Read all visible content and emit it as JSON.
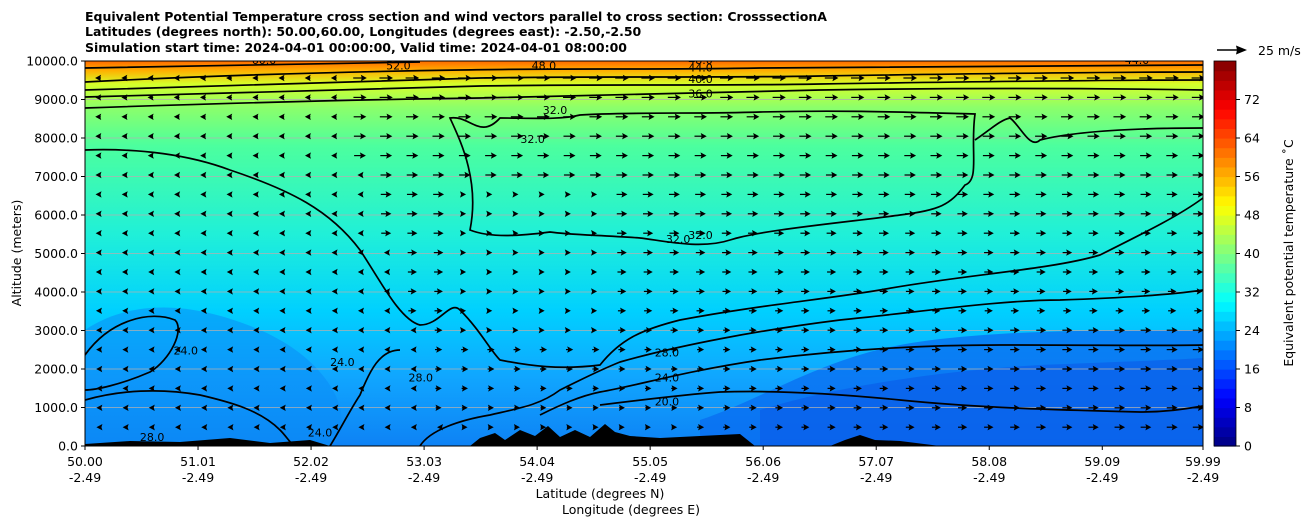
{
  "chart_data": {
    "type": "heatmap",
    "title_lines": [
      "Equivalent Potential Temperature cross section and wind vectors parallel to cross section: CrosssectionA",
      "Latitudes (degrees north): 50.00,60.00, Longitudes (degrees east): -2.50,-2.50",
      "Simulation start time: 2024-04-01 00:00:00, Valid time: 2024-04-01 08:00:00"
    ],
    "ylabel": "Altitude (meters)",
    "xlabel_lat": "Latitude (degrees N)",
    "xlabel_lon": "Longitude (degrees E)",
    "ylim": [
      0,
      10000
    ],
    "y_ticks": [
      "0.0",
      "1000.0",
      "2000.0",
      "3000.0",
      "4000.0",
      "5000.0",
      "6000.0",
      "7000.0",
      "8000.0",
      "9000.0",
      "10000.0"
    ],
    "y_tick_values": [
      0,
      1000,
      2000,
      3000,
      4000,
      5000,
      6000,
      7000,
      8000,
      9000,
      10000
    ],
    "x_ticks_lat": [
      "50.00",
      "51.01",
      "52.02",
      "53.03",
      "54.04",
      "55.05",
      "56.06",
      "57.07",
      "58.08",
      "59.09",
      "59.99"
    ],
    "x_ticks_lon": [
      "-2.49",
      "-2.49",
      "-2.49",
      "-2.49",
      "-2.49",
      "-2.49",
      "-2.49",
      "-2.49",
      "-2.49",
      "-2.49",
      "-2.49"
    ],
    "x_tick_values": [
      50.0,
      51.01,
      52.02,
      53.03,
      54.04,
      55.05,
      56.06,
      57.07,
      58.08,
      59.09,
      59.99
    ],
    "xlim": [
      50.0,
      59.99
    ],
    "grid": "horizontal",
    "colorbar": {
      "label": "Equivalent potential temperature ˚C",
      "min": 0,
      "max": 80,
      "ticks": [
        "0",
        "8",
        "16",
        "24",
        "32",
        "40",
        "48",
        "56",
        "64",
        "72"
      ],
      "tick_values": [
        0,
        8,
        16,
        24,
        32,
        40,
        48,
        56,
        64,
        72
      ],
      "colormap": "jet"
    },
    "quiver_key_label": "25 m/s",
    "contour_labels": [
      {
        "text": "60.0",
        "lat": 51.6,
        "alt": 9950
      },
      {
        "text": "52.0",
        "lat": 52.8,
        "alt": 9800
      },
      {
        "text": "48.0",
        "lat": 54.1,
        "alt": 9800
      },
      {
        "text": "48.0",
        "lat": 55.5,
        "alt": 9950
      },
      {
        "text": "44.0",
        "lat": 55.5,
        "alt": 9750
      },
      {
        "text": "40.0",
        "lat": 55.5,
        "alt": 9450
      },
      {
        "text": "36.0",
        "lat": 55.5,
        "alt": 9080
      },
      {
        "text": "44.0",
        "lat": 59.4,
        "alt": 9950
      },
      {
        "text": "32.0",
        "lat": 54.2,
        "alt": 8650
      },
      {
        "text": "32.0",
        "lat": 54.0,
        "alt": 7900
      },
      {
        "text": "32.0",
        "lat": 55.3,
        "alt": 5300
      },
      {
        "text": "32.0",
        "lat": 55.5,
        "alt": 5400
      },
      {
        "text": "28.0",
        "lat": 55.2,
        "alt": 2350
      },
      {
        "text": "24.0",
        "lat": 55.2,
        "alt": 1700
      },
      {
        "text": "20.0",
        "lat": 55.2,
        "alt": 1080
      },
      {
        "text": "24.0",
        "lat": 50.9,
        "alt": 2400
      },
      {
        "text": "24.0",
        "lat": 52.3,
        "alt": 2100
      },
      {
        "text": "28.0",
        "lat": 53.0,
        "alt": 1700
      },
      {
        "text": "28.0",
        "lat": 50.6,
        "alt": 150
      },
      {
        "text": "24.0",
        "lat": 52.1,
        "alt": 270
      }
    ],
    "colors": {
      "contour": "#000000",
      "terrain": "#000000",
      "arrows": "#000000"
    }
  }
}
